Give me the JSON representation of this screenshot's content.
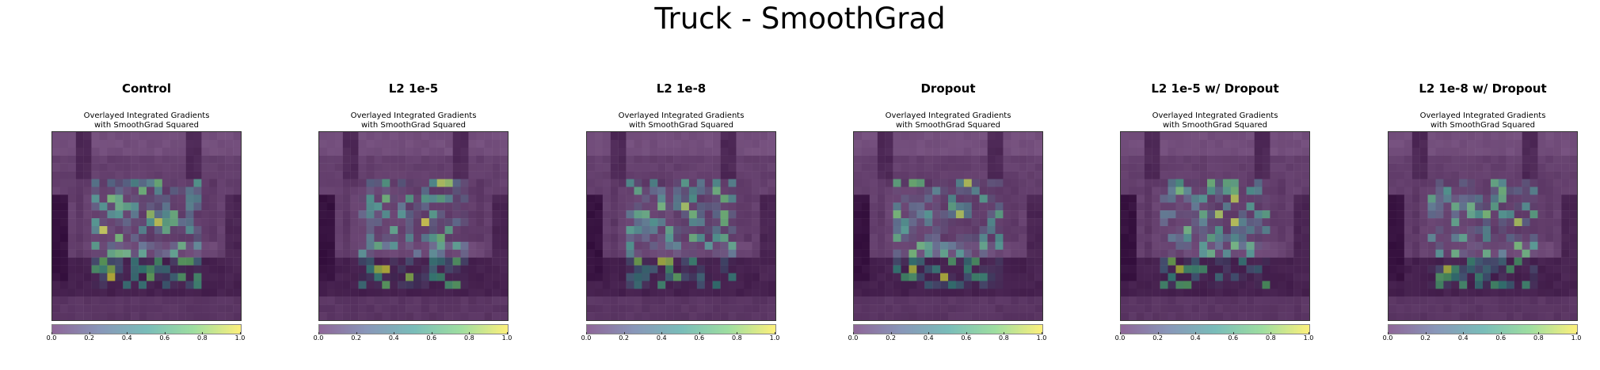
{
  "figure": {
    "title": "Truck - SmoothGrad"
  },
  "chart_data": [
    {
      "type": "heatmap",
      "title": "Control",
      "subtitle_line1": "Overlayed Integrated Gradients",
      "subtitle_line2": "with SmoothGrad Squared",
      "colorbar_ticks": [
        "0.0",
        "0.2",
        "0.4",
        "0.6",
        "0.8",
        "1.0"
      ],
      "colorbar_range": [
        0.0,
        1.0
      ],
      "colormap": "viridis",
      "grid_size": 24
    },
    {
      "type": "heatmap",
      "title": "L2 1e-5",
      "subtitle_line1": "Overlayed Integrated Gradients",
      "subtitle_line2": "with SmoothGrad Squared",
      "colorbar_ticks": [
        "0.0",
        "0.2",
        "0.4",
        "0.6",
        "0.8",
        "1.0"
      ],
      "colorbar_range": [
        0.0,
        1.0
      ],
      "colormap": "viridis",
      "grid_size": 24
    },
    {
      "type": "heatmap",
      "title": "L2 1e-8",
      "subtitle_line1": "Overlayed Integrated Gradients",
      "subtitle_line2": "with SmoothGrad Squared",
      "colorbar_ticks": [
        "0.0",
        "0.2",
        "0.4",
        "0.6",
        "0.8",
        "1.0"
      ],
      "colorbar_range": [
        0.0,
        1.0
      ],
      "colormap": "viridis",
      "grid_size": 24
    },
    {
      "type": "heatmap",
      "title": "Dropout",
      "subtitle_line1": "Overlayed Integrated Gradients",
      "subtitle_line2": "with SmoothGrad Squared",
      "colorbar_ticks": [
        "0.0",
        "0.2",
        "0.4",
        "0.6",
        "0.8",
        "1.0"
      ],
      "colorbar_range": [
        0.0,
        1.0
      ],
      "colormap": "viridis",
      "grid_size": 24
    },
    {
      "type": "heatmap",
      "title": "L2 1e-5 w/ Dropout",
      "subtitle_line1": "Overlayed Integrated Gradients",
      "subtitle_line2": "with SmoothGrad Squared",
      "colorbar_ticks": [
        "0.0",
        "0.2",
        "0.4",
        "0.6",
        "0.8",
        "1.0"
      ],
      "colorbar_range": [
        0.0,
        1.0
      ],
      "colormap": "viridis",
      "grid_size": 24
    },
    {
      "type": "heatmap",
      "title": "L2 1e-8 w/ Dropout",
      "subtitle_line1": "Overlayed Integrated Gradients",
      "subtitle_line2": "with SmoothGrad Squared",
      "colorbar_ticks": [
        "0.0",
        "0.2",
        "0.4",
        "0.6",
        "0.8",
        "1.0"
      ],
      "colorbar_range": [
        0.0,
        1.0
      ],
      "colormap": "viridis",
      "grid_size": 24
    }
  ]
}
